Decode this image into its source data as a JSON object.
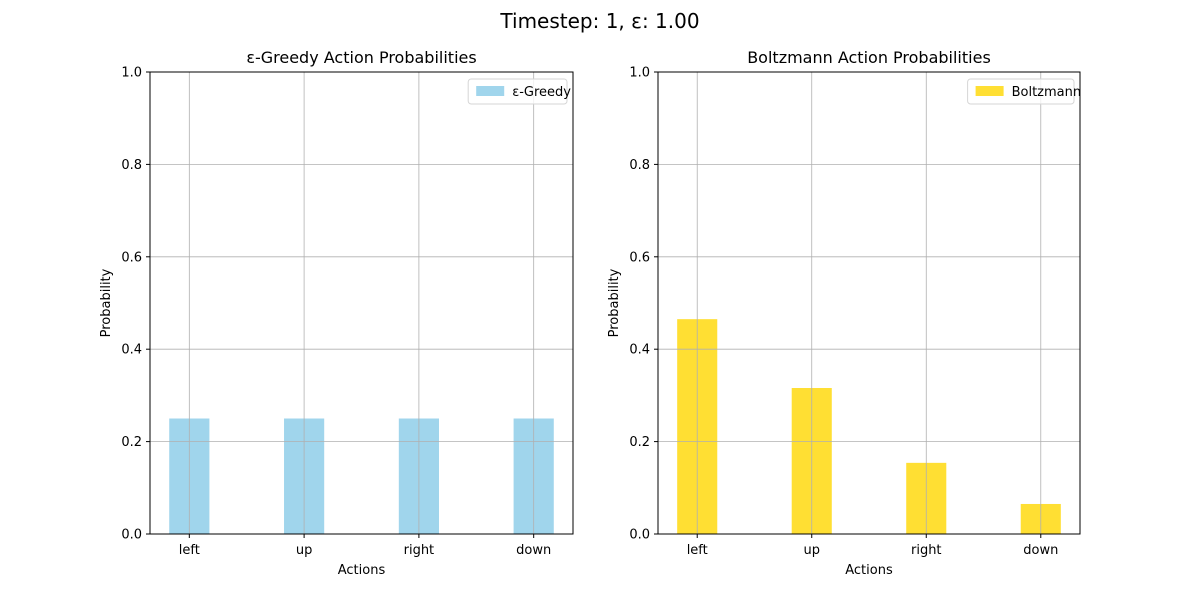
{
  "figure": {
    "suptitle": "Timestep: 1, ε: 1.00"
  },
  "chart_data": [
    {
      "type": "bar",
      "title": "ε-Greedy Action Probabilities",
      "xlabel": "Actions",
      "ylabel": "Probability",
      "categories": [
        "left",
        "up",
        "right",
        "down"
      ],
      "series": [
        {
          "name": "ε-Greedy",
          "values": [
            0.25,
            0.25,
            0.25,
            0.25
          ],
          "color": "#a0d5ec"
        }
      ],
      "ylim": [
        0,
        1.0
      ],
      "yticks": [
        0.0,
        0.2,
        0.4,
        0.6,
        0.8,
        1.0
      ],
      "ytick_labels": [
        "0.0",
        "0.2",
        "0.4",
        "0.6",
        "0.8",
        "1.0"
      ],
      "grid": true,
      "legend": "top-right"
    },
    {
      "type": "bar",
      "title": "Boltzmann Action Probabilities",
      "xlabel": "Actions",
      "ylabel": "Probability",
      "categories": [
        "left",
        "up",
        "right",
        "down"
      ],
      "series": [
        {
          "name": "Boltzmann",
          "values": [
            0.465,
            0.316,
            0.154,
            0.065
          ],
          "color": "#ffdf33"
        }
      ],
      "ylim": [
        0,
        1.0
      ],
      "yticks": [
        0.0,
        0.2,
        0.4,
        0.6,
        0.8,
        1.0
      ],
      "ytick_labels": [
        "0.0",
        "0.2",
        "0.4",
        "0.6",
        "0.8",
        "1.0"
      ],
      "grid": true,
      "legend": "top-right"
    }
  ]
}
